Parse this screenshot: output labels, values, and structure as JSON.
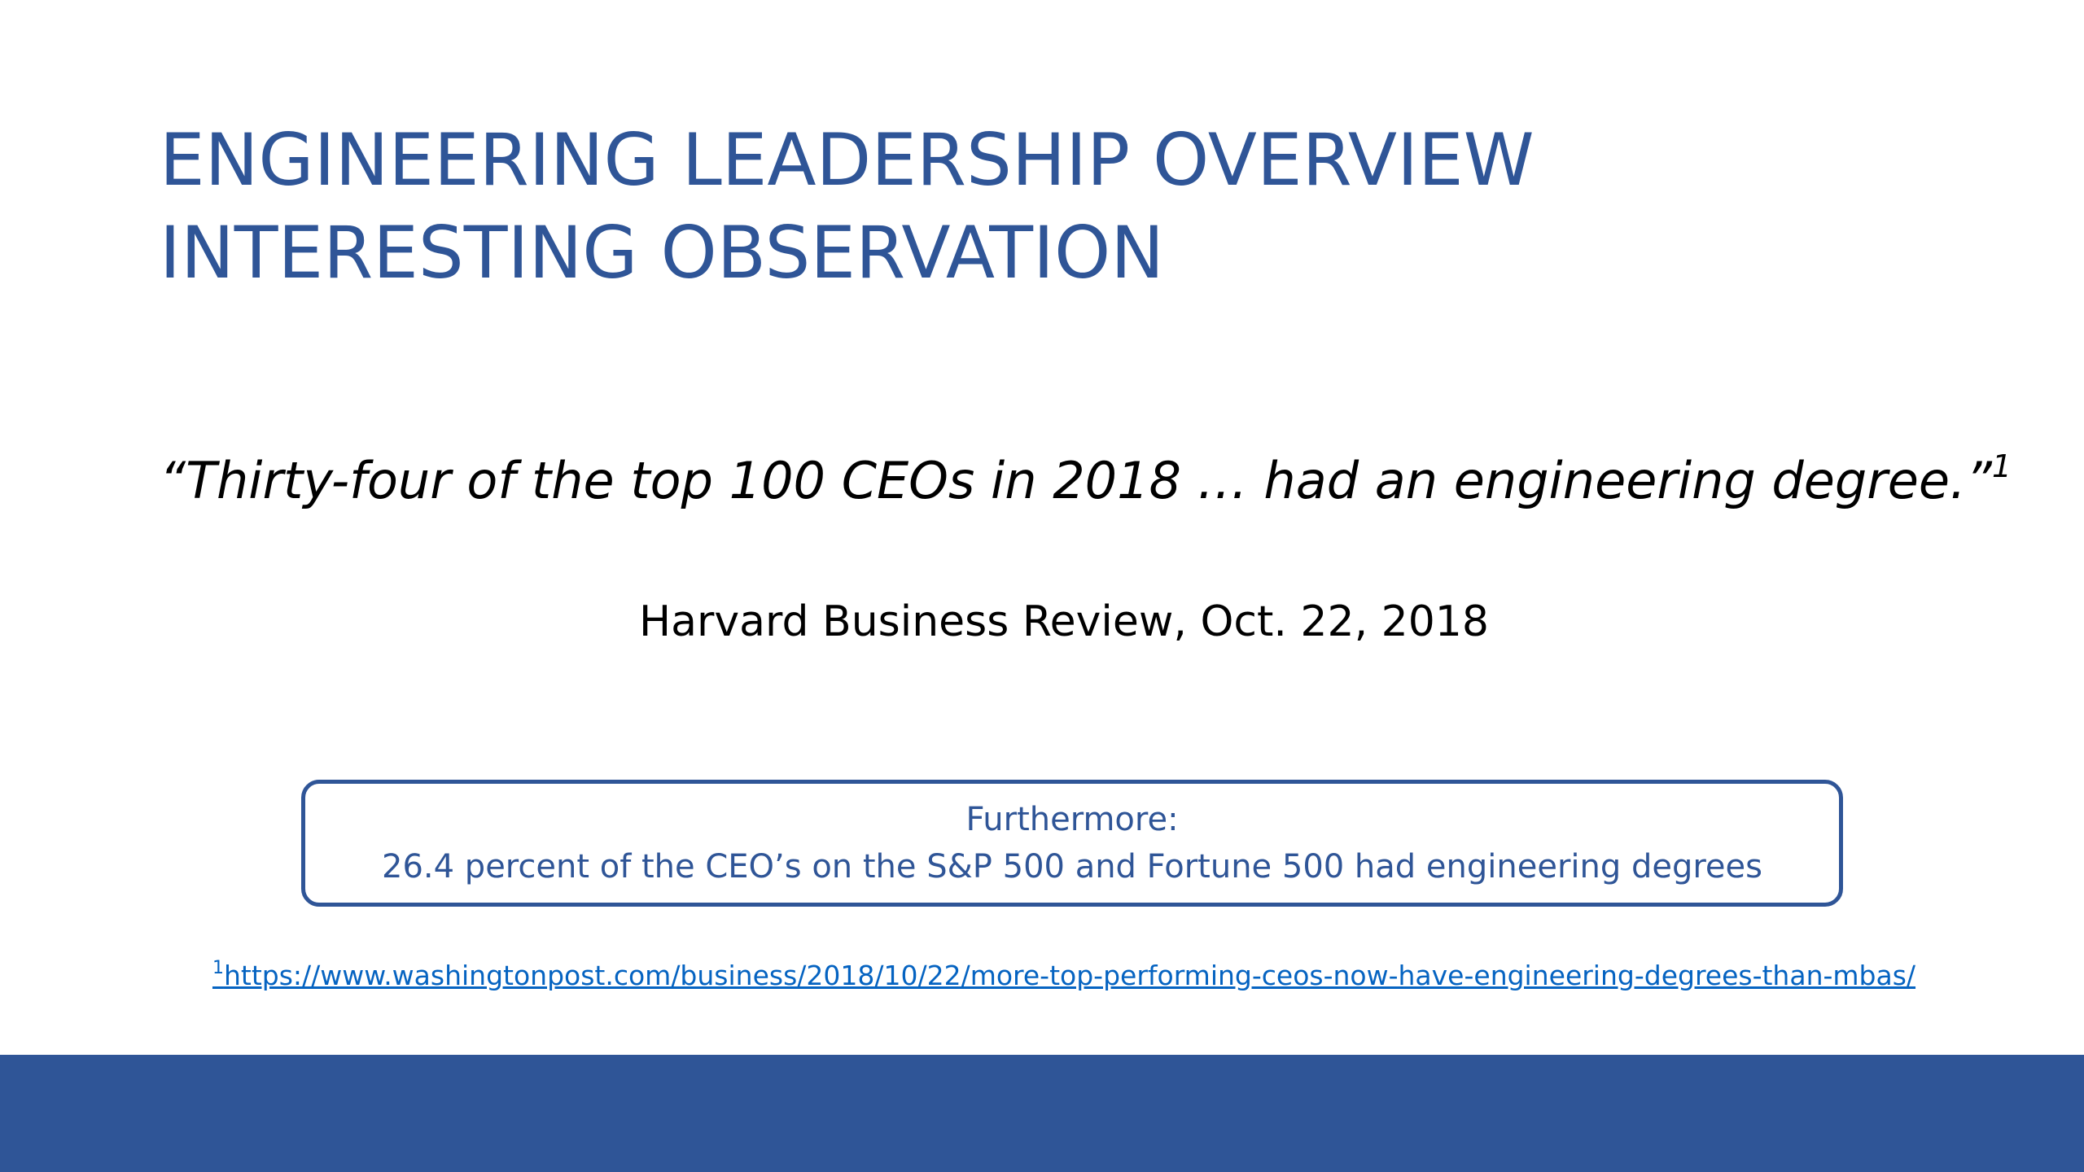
{
  "slide": {
    "title_line1": "ENGINEERING LEADERSHIP OVERVIEW",
    "title_line2": "INTERESTING OBSERVATION",
    "quote_text": "“Thirty-four of the top 100 CEOs in 2018 … had an engineering degree.”",
    "quote_footnote_mark": "1",
    "source": "Harvard Business Review, Oct. 22, 2018",
    "callout": {
      "line1": "Furthermore:",
      "line2": "26.4 percent of the CEO’s on the S&P 500 and Fortune 500 had engineering degrees"
    },
    "footnote": {
      "mark": "1",
      "url": "https://www.washingtonpost.com/business/2018/10/22/more-top-performing-ceos-now-have-engineering-degrees-than-mbas/"
    }
  },
  "colors": {
    "accent_blue": "#2f5597",
    "link_blue": "#0563c1",
    "text": "#000000",
    "background": "#ffffff"
  }
}
